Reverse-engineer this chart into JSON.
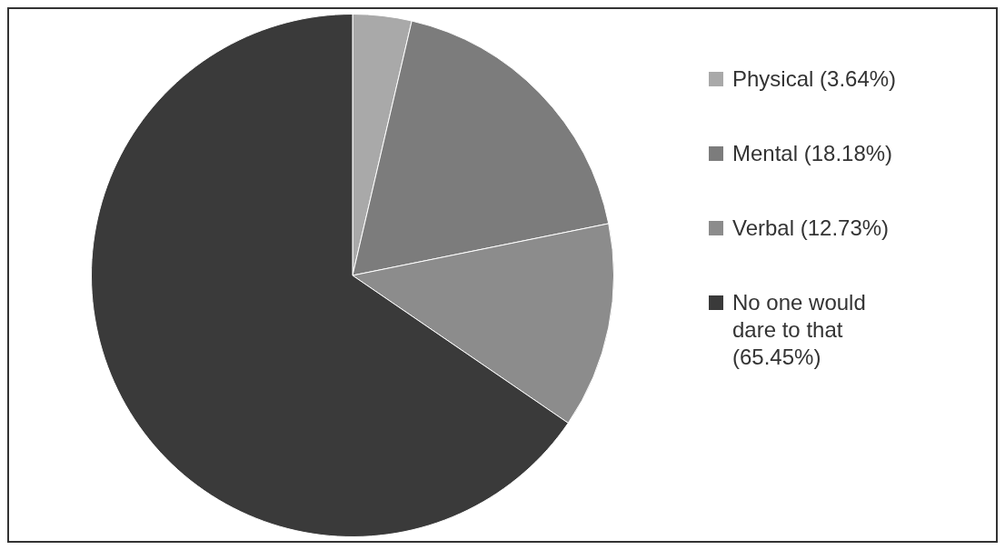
{
  "chart_data": {
    "type": "pie",
    "categories": [
      "Physical (3.64%)",
      "Mental (18.18%)",
      "Verbal (12.73%)",
      "No one would dare to that (65.45%)"
    ],
    "values": [
      3.64,
      18.18,
      12.73,
      65.45
    ],
    "colors": [
      "#a9a9a9",
      "#7c7c7c",
      "#8c8c8c",
      "#3a3a3a"
    ],
    "legend": "right"
  }
}
